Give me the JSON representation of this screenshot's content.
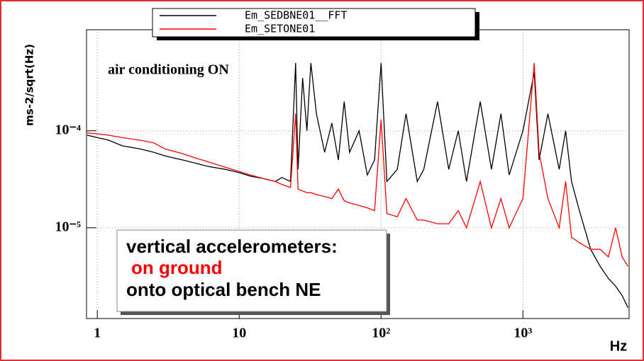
{
  "chart_data": {
    "type": "line",
    "xscale": "log",
    "yscale": "log",
    "grid": true,
    "legend": "top",
    "ylabel": "ms-2/sqrt(Hz)",
    "xlabel": "Hz",
    "xlim": [
      0.84,
      5600
    ],
    "ylim": [
      1.16e-06,
      0.0011
    ],
    "xticks": [
      1,
      10,
      {
        "value": 100,
        "label": "10²"
      },
      {
        "value": 1000,
        "label": "10³"
      }
    ],
    "yticks": [
      {
        "value": 0.0001,
        "label": "10⁻⁴"
      },
      {
        "value": 1e-05,
        "label": "10⁻⁵"
      }
    ],
    "annotations": [
      {
        "text": "air conditioning ON",
        "color": "#000000"
      },
      {
        "text": "vertical accelerometers:",
        "color": "#000000"
      },
      {
        "text": "on ground",
        "color": "#ff0000"
      },
      {
        "text": "onto optical bench NE",
        "color": "#000000"
      }
    ],
    "x": [
      0.85,
      1,
      1.2,
      1.5,
      2,
      2.5,
      3,
      4,
      5,
      6,
      8,
      10,
      12,
      15,
      18,
      20,
      23,
      25,
      26,
      28,
      30,
      32,
      35,
      40,
      45,
      50,
      55,
      60,
      70,
      80,
      90,
      100,
      110,
      130,
      150,
      180,
      200,
      250,
      300,
      350,
      400,
      500,
      600,
      700,
      800,
      1000,
      1200,
      1300,
      1500,
      1800,
      2000,
      2200,
      2500,
      3000,
      3500,
      4000,
      4500,
      5000,
      5500
    ],
    "series": [
      {
        "name": "Em_SEDBNE01__FFT",
        "color": "#000000",
        "values": [
          9e-05,
          8.5e-05,
          8e-05,
          7e-05,
          6.5e-05,
          6e-05,
          5.5e-05,
          5e-05,
          4.6e-05,
          4.3e-05,
          4e-05,
          3.7e-05,
          3.4e-05,
          3.2e-05,
          3e-05,
          3.3e-05,
          3e-05,
          0.0005,
          4e-05,
          0.00035,
          0.0001,
          0.0005,
          0.00015,
          6e-05,
          0.00012,
          5e-05,
          0.0002,
          6e-05,
          0.0001,
          3.5e-05,
          5e-05,
          0.0005,
          3e-05,
          4e-05,
          0.00015,
          3e-05,
          4e-05,
          0.0002,
          4e-05,
          0.0001,
          3e-05,
          0.0002,
          4e-05,
          0.00015,
          3.5e-05,
          0.0001,
          0.0004,
          5e-05,
          0.00015,
          4e-05,
          0.0001,
          3e-05,
          1.5e-05,
          6e-06,
          4e-06,
          3e-06,
          2.5e-06,
          2e-06,
          1.5e-06
        ]
      },
      {
        "name": "Em_SETONE01",
        "color": "#ff0000",
        "values": [
          9.5e-05,
          9.3e-05,
          9e-05,
          8.5e-05,
          8e-05,
          7.5e-05,
          6.5e-05,
          5.8e-05,
          5.2e-05,
          4.8e-05,
          4.2e-05,
          3.8e-05,
          3.5e-05,
          3.2e-05,
          3e-05,
          2.8e-05,
          2.6e-05,
          0.00015,
          2.5e-05,
          2.4e-05,
          2.3e-05,
          2.3e-05,
          2.2e-05,
          2.1e-05,
          2e-05,
          2.5e-05,
          1.9e-05,
          1.8e-05,
          1.7e-05,
          1.6e-05,
          1.5e-05,
          0.00013,
          1.4e-05,
          1.3e-05,
          2e-05,
          1.2e-05,
          1.2e-05,
          1.1e-05,
          1.1e-05,
          1.5e-05,
          1e-05,
          3e-05,
          1e-05,
          2e-05,
          1e-05,
          2e-05,
          0.0005,
          6e-05,
          2e-05,
          1e-05,
          3e-05,
          8e-06,
          7e-06,
          6e-06,
          6e-06,
          5e-06,
          1e-05,
          5e-06,
          4e-06
        ]
      }
    ]
  }
}
